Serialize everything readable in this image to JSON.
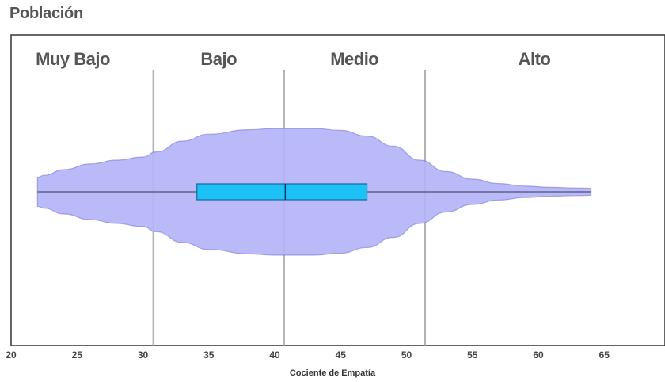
{
  "title": "Población",
  "chart_data": {
    "type": "violin",
    "xlabel": "Cociente de Empatía",
    "xlim": [
      20,
      68
    ],
    "xticks": [
      20,
      25,
      30,
      35,
      40,
      45,
      50,
      55,
      60,
      65
    ],
    "categories": [
      {
        "label": "Muy Bajo",
        "from": 20,
        "to": 30.8
      },
      {
        "label": "Bajo",
        "from": 30.8,
        "to": 40.7
      },
      {
        "label": "Medio",
        "from": 40.7,
        "to": 51.4
      },
      {
        "label": "Alto",
        "from": 51.4,
        "to": 68
      }
    ],
    "thresholds": [
      30.8,
      40.7,
      51.4
    ],
    "box": {
      "min": 22,
      "q1": 34.1,
      "median": 40.8,
      "q3": 47,
      "max": 64
    },
    "density": {
      "x": [
        22,
        22.5,
        24,
        26,
        28,
        30,
        31,
        33,
        35,
        38,
        40,
        43,
        45,
        47,
        49,
        51,
        53,
        55,
        57,
        59,
        61,
        63,
        64
      ],
      "width": [
        0.23,
        0.26,
        0.35,
        0.44,
        0.5,
        0.55,
        0.63,
        0.8,
        0.91,
        0.98,
        1.0,
        1.0,
        0.97,
        0.88,
        0.72,
        0.5,
        0.32,
        0.2,
        0.13,
        0.09,
        0.07,
        0.06,
        0.055
      ]
    },
    "colors": {
      "violin_fill": "#b3b3f8",
      "violin_stroke": "#5a5acb",
      "box_fill": "#1ec1f5",
      "box_stroke": "#0e6b99",
      "threshold": "#999999"
    }
  }
}
